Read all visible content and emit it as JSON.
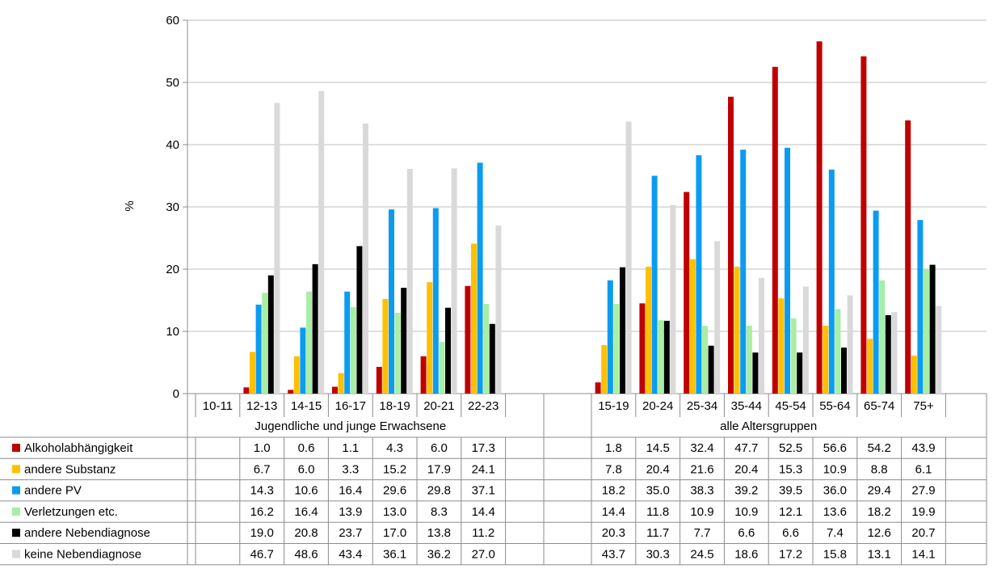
{
  "chart_data": {
    "type": "bar",
    "ylabel": "%",
    "ylim": [
      0,
      60
    ],
    "yticks": [
      0,
      10,
      20,
      30,
      40,
      50,
      60
    ],
    "grid": true,
    "legend": "left, table row labels",
    "groups": [
      {
        "label": "Jugendliche und junge Erwachsene",
        "categories": [
          "10-11",
          "12-13",
          "14-15",
          "16-17",
          "18-19",
          "20-21",
          "22-23"
        ],
        "series": [
          {
            "name": "Alkoholabhängigkeit",
            "values": [
              null,
              1.0,
              0.6,
              1.1,
              4.3,
              6.0,
              17.3
            ]
          },
          {
            "name": "andere Substanz",
            "values": [
              null,
              6.7,
              6.0,
              3.3,
              15.2,
              17.9,
              24.1
            ]
          },
          {
            "name": "andere PV",
            "values": [
              null,
              14.3,
              10.6,
              16.4,
              29.6,
              29.8,
              37.1
            ]
          },
          {
            "name": "Verletzungen etc.",
            "values": [
              null,
              16.2,
              16.4,
              13.9,
              13.0,
              8.3,
              14.4
            ]
          },
          {
            "name": "andere Nebendiagnose",
            "values": [
              null,
              19.0,
              20.8,
              23.7,
              17.0,
              13.8,
              11.2
            ]
          },
          {
            "name": "keine Nebendiagnose",
            "values": [
              null,
              46.7,
              48.6,
              43.4,
              36.1,
              36.2,
              27.0
            ]
          }
        ]
      },
      {
        "label": "alle Altersgruppen",
        "categories": [
          "15-19",
          "20-24",
          "25-34",
          "35-44",
          "45-54",
          "55-64",
          "65-74",
          "75+"
        ],
        "series": [
          {
            "name": "Alkoholabhängigkeit",
            "values": [
              1.8,
              14.5,
              32.4,
              47.7,
              52.5,
              56.6,
              54.2,
              43.9
            ]
          },
          {
            "name": "andere Substanz",
            "values": [
              7.8,
              20.4,
              21.6,
              20.4,
              15.3,
              10.9,
              8.8,
              6.1
            ]
          },
          {
            "name": "andere PV",
            "values": [
              18.2,
              35.0,
              38.3,
              39.2,
              39.5,
              36.0,
              29.4,
              27.9
            ]
          },
          {
            "name": "Verletzungen etc.",
            "values": [
              14.4,
              11.8,
              10.9,
              10.9,
              12.1,
              13.6,
              18.2,
              19.9
            ]
          },
          {
            "name": "andere Nebendiagnose",
            "values": [
              20.3,
              11.7,
              7.7,
              6.6,
              6.6,
              7.4,
              12.6,
              20.7
            ]
          },
          {
            "name": "keine Nebendiagnose",
            "values": [
              43.7,
              30.3,
              24.5,
              18.6,
              17.2,
              15.8,
              13.1,
              14.1
            ]
          }
        ]
      }
    ],
    "colors": [
      "#c00000",
      "#ffc000",
      "#0b9cf0",
      "#a8eea4",
      "#000000",
      "#d9d9d9"
    ]
  }
}
